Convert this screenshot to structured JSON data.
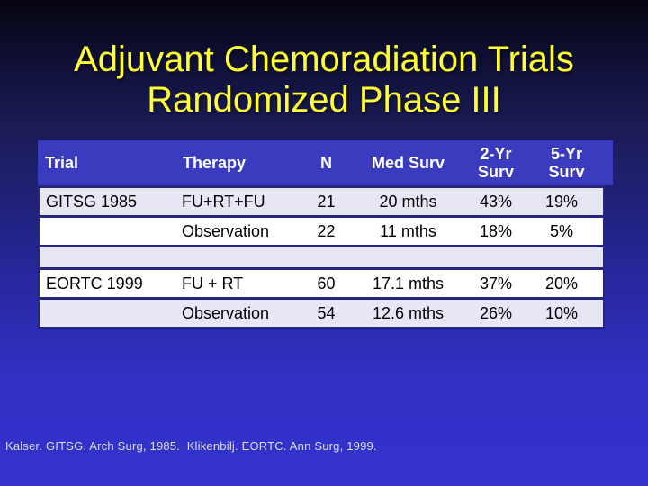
{
  "title": {
    "line1": "Adjuvant Chemoradiation Trials",
    "line2": "Randomized Phase III"
  },
  "table": {
    "headers": [
      "Trial",
      "Therapy",
      "N",
      "Med Surv",
      "2-Yr Surv",
      "5-Yr Surv"
    ],
    "rows": [
      {
        "trial": "GITSG 1985",
        "therapy": "FU+RT+FU",
        "n": "21",
        "med_surv": "20 mths",
        "surv_2yr": "43%",
        "surv_5yr": "19%",
        "shade": "lavender"
      },
      {
        "trial": "",
        "therapy": "Observation",
        "n": "22",
        "med_surv": "11 mths",
        "surv_2yr": "18%",
        "surv_5yr": "5%",
        "shade": "white"
      },
      {
        "spacer": true,
        "shade": "lavender"
      },
      {
        "trial": "EORTC 1999",
        "therapy": "FU + RT",
        "n": "60",
        "med_surv": "17.1 mths",
        "surv_2yr": "37%",
        "surv_5yr": "20%",
        "shade": "white"
      },
      {
        "trial": "",
        "therapy": "Observation",
        "n": "54",
        "med_surv": "12.6 mths",
        "surv_2yr": "26%",
        "surv_5yr": "10%",
        "shade": "lavender"
      }
    ]
  },
  "footer": {
    "citation": "Kalser. GITSG. Arch Surg, 1985.  Klikenbilj. EORTC. Ann Surg, 1999."
  },
  "colors": {
    "bg_top": "#050510",
    "bg_upper": "#1b1b55",
    "bg_bottom": "#3333cc",
    "header_bg": "#3b3bc0",
    "header_text": "#ffffff",
    "row_lavender": "#e6e6f4",
    "row_white": "#ffffff",
    "border_navy": "#26267e",
    "body_text": "#000000",
    "title_yellow": "#ffff33",
    "footer_text": "#dedee2"
  }
}
